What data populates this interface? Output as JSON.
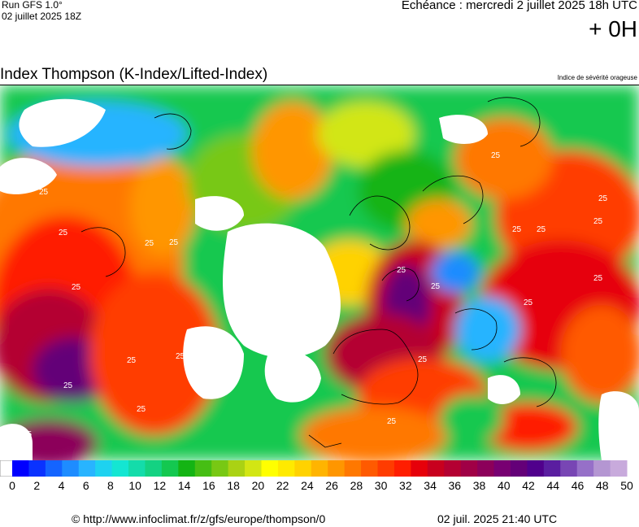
{
  "header": {
    "run_title": "Run GFS 1.0°",
    "run_date": "02 juillet 2025 18Z",
    "valid_time": "Echéance : mercredi 2 juillet 2025 18h UTC",
    "offset": "+ 0H"
  },
  "map": {
    "title": "Index Thompson (K-Index/Lifted-Index)",
    "severity_note": "Indice de sévérité orageuse",
    "contour_label": "25"
  },
  "scale": {
    "min": 0,
    "max": 50,
    "step": 1,
    "tick_labels": [
      "0",
      "2",
      "4",
      "6",
      "8",
      "10",
      "12",
      "14",
      "16",
      "18",
      "20",
      "22",
      "24",
      "26",
      "28",
      "30",
      "32",
      "34",
      "36",
      "38",
      "40",
      "42",
      "44",
      "46",
      "48",
      "50"
    ],
    "colors": [
      "#ffffff",
      "#0000ff",
      "#0a32ff",
      "#1464ff",
      "#1e8cff",
      "#28b4ff",
      "#1ed2f0",
      "#14e6d2",
      "#14dcaa",
      "#14d282",
      "#14c850",
      "#14b414",
      "#46be14",
      "#78c814",
      "#aad214",
      "#d2e614",
      "#ffff00",
      "#ffea00",
      "#ffd200",
      "#ffb400",
      "#ff9600",
      "#ff7800",
      "#ff5a00",
      "#ff3c00",
      "#ff1e00",
      "#e6000a",
      "#c8001e",
      "#b40032",
      "#a00046",
      "#8c005a",
      "#780072",
      "#640078",
      "#50008c",
      "#5a1ea0",
      "#7846b4",
      "#9670c8",
      "#b496d2",
      "#c8aadc"
    ]
  },
  "footer": {
    "copyright": "© http://www.infoclimat.fr/z/gfs/europe/thompson/0",
    "date": "02 juil. 2025 21:40 UTC"
  }
}
